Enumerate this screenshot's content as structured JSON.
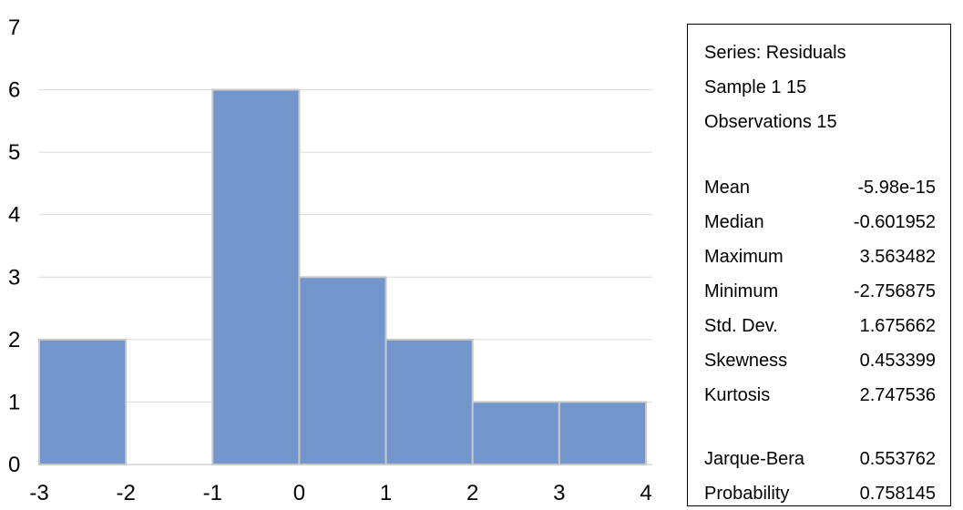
{
  "chart_data": {
    "type": "bar",
    "bins": [
      {
        "from": -3,
        "to": -2,
        "count": 2
      },
      {
        "from": -2,
        "to": -1,
        "count": 0
      },
      {
        "from": -1,
        "to": 0,
        "count": 6
      },
      {
        "from": 0,
        "to": 1,
        "count": 3
      },
      {
        "from": 1,
        "to": 2,
        "count": 2
      },
      {
        "from": 2,
        "to": 3,
        "count": 1
      },
      {
        "from": 3,
        "to": 4,
        "count": 1
      }
    ],
    "xlim": [
      -3,
      4
    ],
    "ylim": [
      0,
      7
    ],
    "x_ticks": [
      "-3",
      "-2",
      "-1",
      "0",
      "1",
      "2",
      "3",
      "4"
    ],
    "y_ticks": [
      "0",
      "1",
      "2",
      "3",
      "4",
      "5",
      "6",
      "7"
    ],
    "grid": "horizontal",
    "bar_color": "#7295CC",
    "bar_edge_color": "#C8C8C8",
    "grid_color": "#D9D9D9"
  },
  "stats": {
    "series": "Series: Residuals",
    "sample": "Sample 1 15",
    "observations": "Observations 15",
    "rows": [
      {
        "label": "Mean",
        "value": "-5.98e-15"
      },
      {
        "label": "Median",
        "value": "-0.601952"
      },
      {
        "label": "Maximum",
        "value": "3.563482"
      },
      {
        "label": "Minimum",
        "value": "-2.756875"
      },
      {
        "label": "Std. Dev.",
        "value": "1.675662"
      },
      {
        "label": "Skewness",
        "value": "0.453399"
      },
      {
        "label": "Kurtosis",
        "value": "2.747536"
      }
    ],
    "test_rows": [
      {
        "label": "Jarque-Bera",
        "value": "0.553762"
      },
      {
        "label": "Probability",
        "value": "0.758145"
      }
    ]
  }
}
